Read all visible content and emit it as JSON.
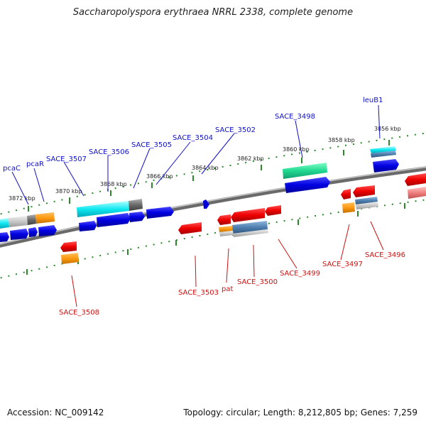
{
  "header": {
    "title": "Saccharopolyspora erythraea NRRL 2338, complete genome"
  },
  "footer": {
    "accession": "Accession: NC_009142",
    "topology": "Topology: circular; Length: 8,212,805 bp; Genes: 7,259"
  },
  "colors": {
    "forward": "#0000dd",
    "reverse": "#ee0000",
    "label_forward": "#1010c8",
    "label_reverse": "#d01010",
    "ticks": "#2a8a2a",
    "backbone": "#808080"
  },
  "scale_labels": [
    "3856 kbp",
    "3858 kbp",
    "3860 kbp",
    "3862 kbp",
    "3864 kbp",
    "3866 kbp",
    "3868 kbp",
    "3870 kbp",
    "3872 kbp"
  ],
  "gene_labels_top": [
    "leuB1",
    "SACE_3498",
    "SACE_3502",
    "SACE_3504",
    "SACE_3505",
    "SACE_3506",
    "SACE_3507",
    "pcaR",
    "pcaC"
  ],
  "gene_labels_bottom": [
    "SACE_3496",
    "SACE_3497",
    "SACE_3499",
    "SACE_3500",
    "pat",
    "SACE_3503",
    "SACE_3508"
  ]
}
